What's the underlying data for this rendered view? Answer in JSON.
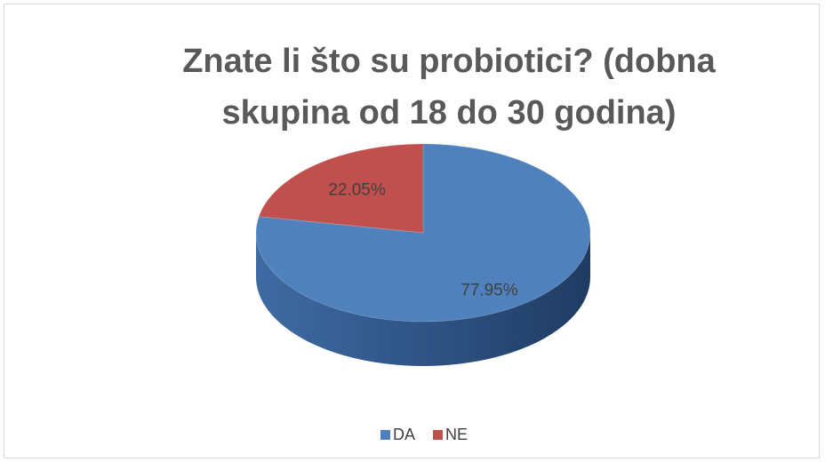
{
  "chart_data": {
    "type": "pie",
    "title": "Znate li što su probiotici? (dobna skupina od 18 do 30 godina)",
    "categories": [
      "DA",
      "NE"
    ],
    "values": [
      77.95,
      22.05
    ],
    "value_labels": [
      "77.95%",
      "22.05%"
    ],
    "colors": [
      "#4f81bd",
      "#c0504d"
    ],
    "legend": "bottom"
  }
}
